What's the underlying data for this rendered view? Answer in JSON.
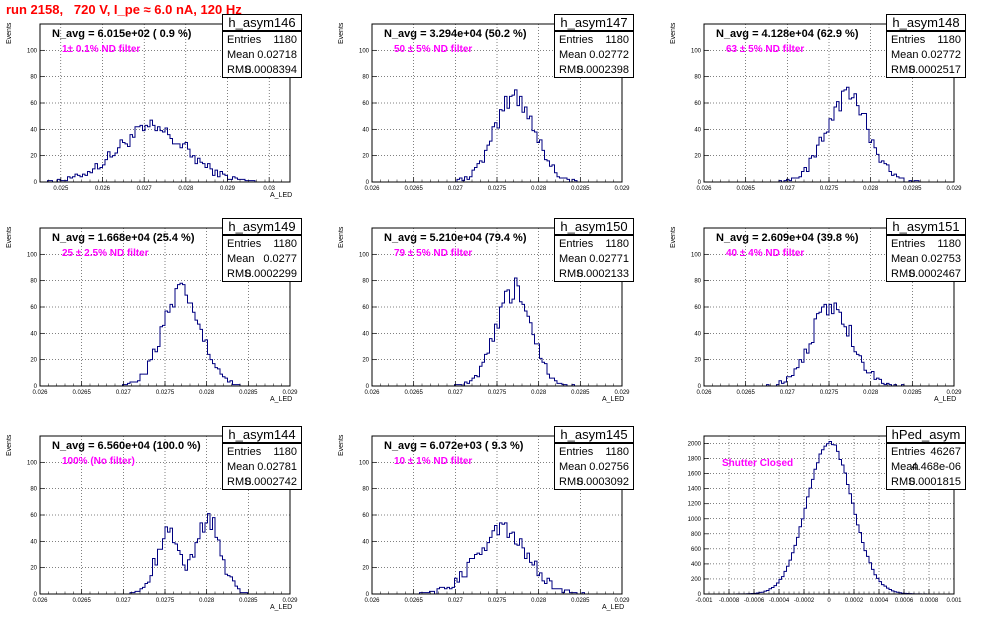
{
  "header": {
    "run_title": "run 2158,   720 V, I_pe ≈ 6.0 nA, 120 Hz"
  },
  "chart_data": [
    {
      "type": "histogram",
      "name": "h_asym146",
      "summary": "N_avg = 6.015e+02 ( 0.9 %)",
      "filter": "1± 0.1% ND filter",
      "stats": {
        "Entries": "1180",
        "Mean": "0.02718",
        "RMS": "0.0008394"
      },
      "xlim": [
        0.0245,
        0.0305
      ],
      "ylim": [
        0,
        120
      ],
      "xticks": [
        0.025,
        0.026,
        0.027,
        0.028,
        0.029,
        0.03
      ],
      "xticklabels": [
        "0.025",
        "0.026",
        "0.027",
        "0.028",
        "0.029",
        "0.03"
      ],
      "yticks": [
        0,
        20,
        40,
        60,
        80,
        100
      ],
      "ylabel": "Events",
      "xlabel": "A_LED",
      "hist": {
        "mean": 0.02718,
        "sigma": 0.0008394,
        "peak": 40
      }
    },
    {
      "type": "histogram",
      "name": "h_asym147",
      "summary": "N_avg = 3.294e+04 (50.2 %)",
      "filter": "50 ± 5% ND filter",
      "stats": {
        "Entries": "1180",
        "Mean": "0.02772",
        "RMS": "0.0002398"
      },
      "xlim": [
        0.026,
        0.029
      ],
      "ylim": [
        0,
        120
      ],
      "xticks": [
        0.026,
        0.0265,
        0.027,
        0.0275,
        0.028,
        0.0285,
        0.029
      ],
      "xticklabels": [
        "0.026",
        "0.0265",
        "0.027",
        "0.0275",
        "0.028",
        "0.0285",
        "0.029"
      ],
      "yticks": [
        0,
        20,
        40,
        60,
        80,
        100
      ],
      "ylabel": "Events",
      "xlabel": "",
      "hist": {
        "mean": 0.02772,
        "sigma": 0.0002398,
        "peak": 65
      }
    },
    {
      "type": "histogram",
      "name": "h_asym148",
      "summary": "N_avg = 4.128e+04 (62.9 %)",
      "filter": "63 ± 5% ND filter",
      "stats": {
        "Entries": "1180",
        "Mean": "0.02772",
        "RMS": "0.0002517"
      },
      "xlim": [
        0.026,
        0.029
      ],
      "ylim": [
        0,
        120
      ],
      "xticks": [
        0.026,
        0.0265,
        0.027,
        0.0275,
        0.028,
        0.0285,
        0.029
      ],
      "xticklabels": [
        "0.026",
        "0.0265",
        "0.027",
        "0.0275",
        "0.028",
        "0.0285",
        "0.029"
      ],
      "yticks": [
        0,
        20,
        40,
        60,
        80,
        100
      ],
      "ylabel": "Events",
      "xlabel": "",
      "hist": {
        "mean": 0.02772,
        "sigma": 0.0002517,
        "peak": 66
      }
    },
    {
      "type": "histogram",
      "name": "h_asym149",
      "summary": "N_avg = 1.668e+04 (25.4 %)",
      "filter": "25 ± 2.5% ND filter",
      "stats": {
        "Entries": "1180",
        "Mean": "0.0277",
        "RMS": "0.0002299"
      },
      "xlim": [
        0.026,
        0.029
      ],
      "ylim": [
        0,
        120
      ],
      "xticks": [
        0.026,
        0.0265,
        0.027,
        0.0275,
        0.028,
        0.0285,
        0.029
      ],
      "xticklabels": [
        "0.026",
        "0.0265",
        "0.027",
        "0.0275",
        "0.028",
        "0.0285",
        "0.029"
      ],
      "yticks": [
        0,
        20,
        40,
        60,
        80,
        100
      ],
      "ylabel": "Events",
      "xlabel": "A_LED",
      "hist": {
        "mean": 0.0277,
        "sigma": 0.0002299,
        "peak": 70
      }
    },
    {
      "type": "histogram",
      "name": "h_asym150",
      "summary": "N_avg = 5.210e+04 (79.4 %)",
      "filter": "79 ± 5% ND filter",
      "stats": {
        "Entries": "1180",
        "Mean": "0.02771",
        "RMS": "0.0002133"
      },
      "xlim": [
        0.026,
        0.029
      ],
      "ylim": [
        0,
        120
      ],
      "xticks": [
        0.026,
        0.0265,
        0.027,
        0.0275,
        0.028,
        0.0285,
        0.029
      ],
      "xticklabels": [
        "0.026",
        "0.0265",
        "0.027",
        "0.0275",
        "0.028",
        "0.0285",
        "0.029"
      ],
      "yticks": [
        0,
        20,
        40,
        60,
        80,
        100
      ],
      "ylabel": "Events",
      "xlabel": "A_LED",
      "hist": {
        "mean": 0.02771,
        "sigma": 0.0002133,
        "peak": 73
      }
    },
    {
      "type": "histogram",
      "name": "h_asym151",
      "summary": "N_avg = 2.609e+04 (39.8 %)",
      "filter": "40 ± 4% ND filter",
      "stats": {
        "Entries": "1180",
        "Mean": "0.02753",
        "RMS": "0.0002467"
      },
      "xlim": [
        0.026,
        0.029
      ],
      "ylim": [
        0,
        120
      ],
      "xticks": [
        0.026,
        0.0265,
        0.027,
        0.0275,
        0.028,
        0.0285,
        0.029
      ],
      "xticklabels": [
        "0.026",
        "0.0265",
        "0.027",
        "0.0275",
        "0.028",
        "0.0285",
        "0.029"
      ],
      "yticks": [
        0,
        20,
        40,
        60,
        80,
        100
      ],
      "ylabel": "Events",
      "xlabel": "A_LED",
      "hist": {
        "mean": 0.02753,
        "sigma": 0.0002467,
        "peak": 60
      }
    },
    {
      "type": "histogram",
      "name": "h_asym144",
      "summary": "N_avg = 6.560e+04 (100.0 %)",
      "filter": "100% (No filter)",
      "stats": {
        "Entries": "1180",
        "Mean": "0.02781",
        "RMS": "0.0002742"
      },
      "xlim": [
        0.026,
        0.029
      ],
      "ylim": [
        0,
        120
      ],
      "xticks": [
        0.026,
        0.0265,
        0.027,
        0.0275,
        0.028,
        0.0285,
        0.029
      ],
      "xticklabels": [
        "0.026",
        "0.0265",
        "0.027",
        "0.0275",
        "0.028",
        "0.0285",
        "0.029"
      ],
      "yticks": [
        0,
        20,
        40,
        60,
        80,
        100
      ],
      "ylabel": "Events",
      "xlabel": "A_LED",
      "hist": {
        "mean": 0.02781,
        "sigma": 0.0002742,
        "peak": 60,
        "bimodal": true
      }
    },
    {
      "type": "histogram",
      "name": "h_asym145",
      "summary": "N_avg = 6.072e+03 ( 9.3 %)",
      "filter": "10 ± 1% ND filter",
      "stats": {
        "Entries": "1180",
        "Mean": "0.02756",
        "RMS": "0.0003092"
      },
      "xlim": [
        0.026,
        0.029
      ],
      "ylim": [
        0,
        120
      ],
      "xticks": [
        0.026,
        0.0265,
        0.027,
        0.0275,
        0.028,
        0.0285,
        0.029
      ],
      "xticklabels": [
        "0.026",
        "0.0265",
        "0.027",
        "0.0275",
        "0.028",
        "0.0285",
        "0.029"
      ],
      "yticks": [
        0,
        20,
        40,
        60,
        80,
        100
      ],
      "ylabel": "Events",
      "xlabel": "A_LED",
      "hist": {
        "mean": 0.02756,
        "sigma": 0.0003092,
        "peak": 48
      }
    },
    {
      "type": "histogram",
      "name": "hPed_asym",
      "summary": "",
      "filter": "Shutter Closed",
      "stats": {
        "Entries": "46267",
        "Mean": "4.468e-06",
        "RMS": "0.0001815"
      },
      "xlim": [
        -0.001,
        0.001
      ],
      "ylim": [
        0,
        2100
      ],
      "xticks": [
        -0.001,
        -0.0008,
        -0.0006,
        -0.0004,
        -0.0002,
        0,
        0.0002,
        0.0004,
        0.0006,
        0.0008,
        0.001
      ],
      "xticklabels": [
        "-0.001",
        "-0.0008",
        "-0.0006",
        "-0.0004",
        "-0.0002",
        "0",
        "0.0002",
        "0.0004",
        "0.0006",
        "0.0008",
        "0.001"
      ],
      "yticks": [
        0,
        200,
        400,
        600,
        800,
        1000,
        1200,
        1400,
        1600,
        1800,
        2000
      ],
      "ylabel": "",
      "xlabel": "",
      "hist": {
        "mean": 4.468e-06,
        "sigma": 0.0001815,
        "peak": 2020
      }
    }
  ]
}
